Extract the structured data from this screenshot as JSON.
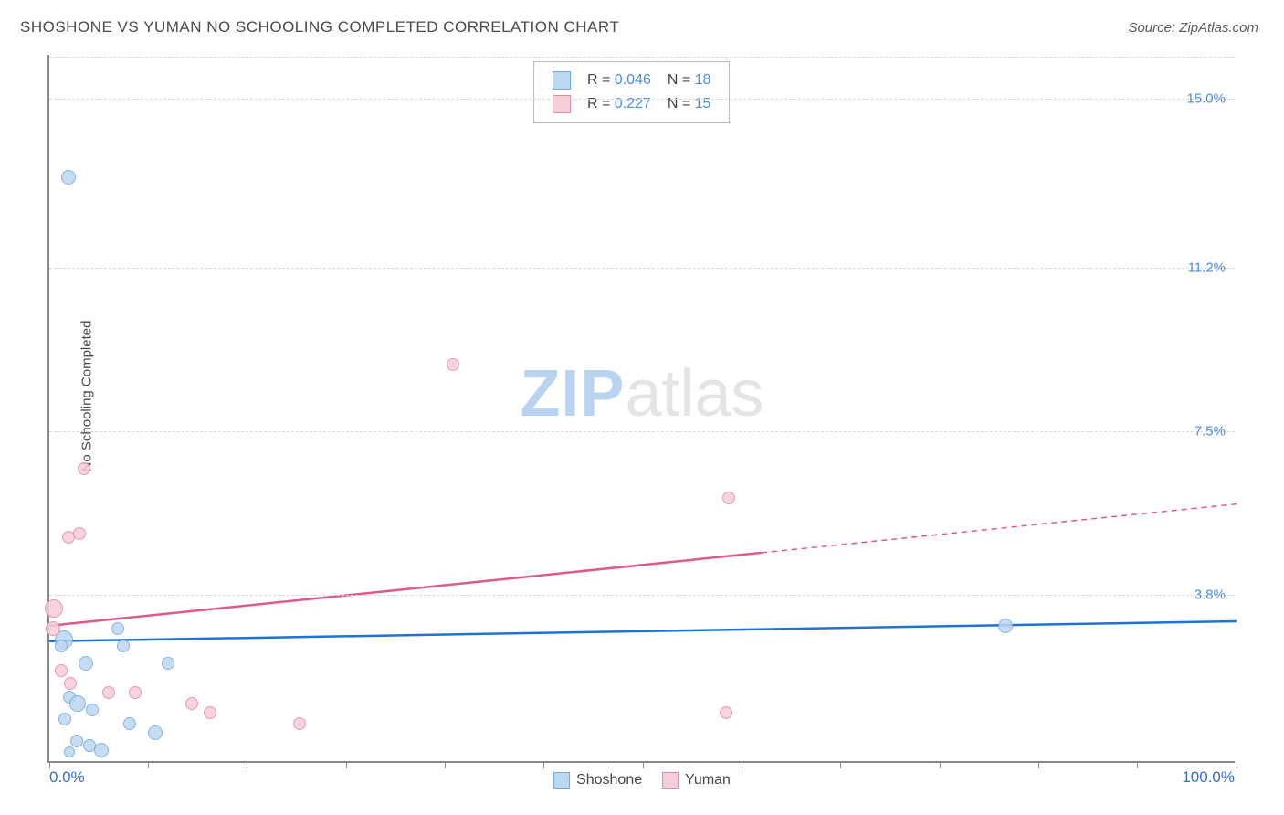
{
  "header": {
    "title": "SHOSHONE VS YUMAN NO SCHOOLING COMPLETED CORRELATION CHART",
    "source": "Source: ZipAtlas.com"
  },
  "chart": {
    "type": "scatter-with-regression",
    "ylabel": "No Schooling Completed",
    "x_min_label": "0.0%",
    "x_max_label": "100.0%",
    "xlim": [
      0,
      100
    ],
    "ylim": [
      0,
      16
    ],
    "y_gridlines": [
      {
        "value": 3.8,
        "label": "3.8%"
      },
      {
        "value": 7.5,
        "label": "7.5%"
      },
      {
        "value": 11.2,
        "label": "11.2%"
      },
      {
        "value": 15.0,
        "label": "15.0%"
      }
    ],
    "x_ticks": [
      0,
      8.3,
      16.6,
      25,
      33.3,
      41.6,
      50,
      58.3,
      66.6,
      75,
      83.3,
      91.6,
      100
    ],
    "watermark": {
      "part1": "ZIP",
      "part2": "atlas"
    },
    "series": [
      {
        "name": "Shoshone",
        "fill": "#bcd7f2",
        "stroke": "#6fa8e0",
        "r_value": "0.046",
        "n_value": "18",
        "points": [
          {
            "x": 1.6,
            "y": 13.2,
            "size": 16
          },
          {
            "x": 5.8,
            "y": 3.0,
            "size": 14
          },
          {
            "x": 1.2,
            "y": 2.75,
            "size": 20
          },
          {
            "x": 1.0,
            "y": 2.6,
            "size": 14
          },
          {
            "x": 3.1,
            "y": 2.2,
            "size": 16
          },
          {
            "x": 6.2,
            "y": 2.6,
            "size": 14
          },
          {
            "x": 10.0,
            "y": 2.2,
            "size": 14
          },
          {
            "x": 1.7,
            "y": 1.45,
            "size": 14
          },
          {
            "x": 2.4,
            "y": 1.3,
            "size": 18
          },
          {
            "x": 3.6,
            "y": 1.15,
            "size": 14
          },
          {
            "x": 1.3,
            "y": 0.95,
            "size": 14
          },
          {
            "x": 6.8,
            "y": 0.85,
            "size": 14
          },
          {
            "x": 8.9,
            "y": 0.65,
            "size": 16
          },
          {
            "x": 2.3,
            "y": 0.45,
            "size": 14
          },
          {
            "x": 3.4,
            "y": 0.35,
            "size": 14
          },
          {
            "x": 4.4,
            "y": 0.25,
            "size": 16
          },
          {
            "x": 1.7,
            "y": 0.2,
            "size": 12
          },
          {
            "x": 80.5,
            "y": 3.05,
            "size": 16
          }
        ],
        "regression": {
          "x1": 0,
          "y1": 2.75,
          "x2": 100,
          "y2": 3.2,
          "solid_until_x": 100
        }
      },
      {
        "name": "Yuman",
        "fill": "#f6cdd8",
        "stroke": "#e08aa4",
        "r_value": "0.227",
        "n_value": "15",
        "points": [
          {
            "x": 34.0,
            "y": 8.95,
            "size": 14
          },
          {
            "x": 57.2,
            "y": 5.95,
            "size": 14
          },
          {
            "x": 2.9,
            "y": 6.6,
            "size": 14
          },
          {
            "x": 2.5,
            "y": 5.15,
            "size": 14
          },
          {
            "x": 1.6,
            "y": 5.05,
            "size": 14
          },
          {
            "x": 0.4,
            "y": 3.45,
            "size": 20
          },
          {
            "x": 0.3,
            "y": 3.0,
            "size": 16
          },
          {
            "x": 1.0,
            "y": 2.05,
            "size": 14
          },
          {
            "x": 1.8,
            "y": 1.75,
            "size": 14
          },
          {
            "x": 5.0,
            "y": 1.55,
            "size": 14
          },
          {
            "x": 7.2,
            "y": 1.55,
            "size": 14
          },
          {
            "x": 12.0,
            "y": 1.3,
            "size": 14
          },
          {
            "x": 13.5,
            "y": 1.1,
            "size": 14
          },
          {
            "x": 21.1,
            "y": 0.85,
            "size": 14
          },
          {
            "x": 57.0,
            "y": 1.1,
            "size": 14
          }
        ],
        "regression": {
          "x1": 0,
          "y1": 3.1,
          "x2": 100,
          "y2": 5.85,
          "solid_until_x": 60
        }
      }
    ],
    "legend_bottom": [
      {
        "label": "Shoshone",
        "fill": "#bcd7f2",
        "stroke": "#6fa8e0"
      },
      {
        "label": "Yuman",
        "fill": "#f6cdd8",
        "stroke": "#e08aa4"
      }
    ],
    "regression_colors": {
      "Shoshone": "#2072d4",
      "Yuman": "#e05a82"
    }
  }
}
